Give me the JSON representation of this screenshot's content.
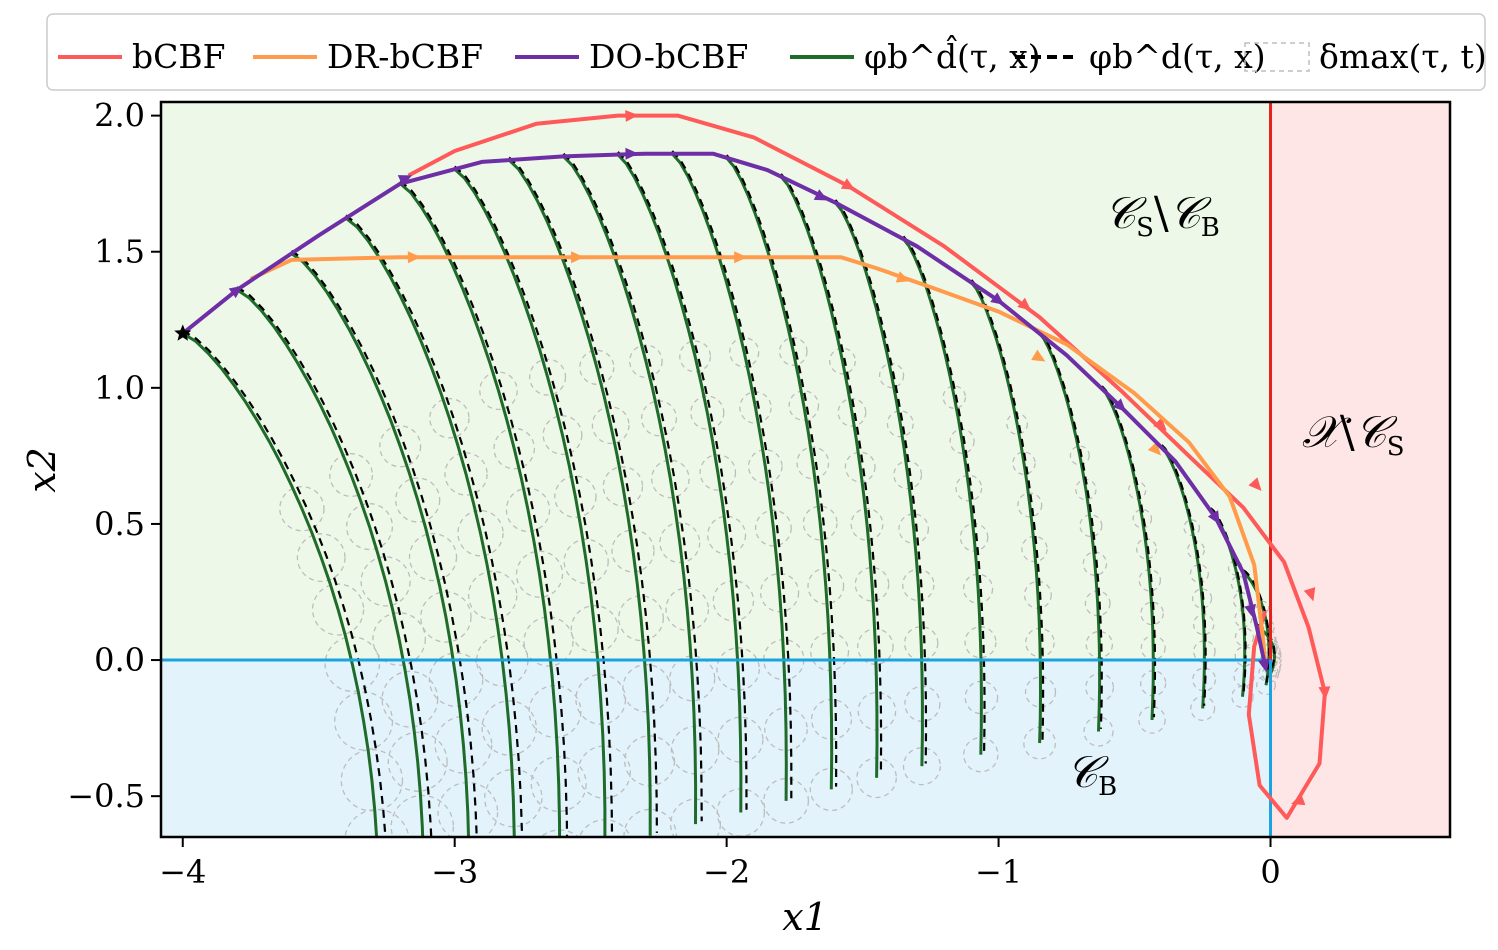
{
  "chart_data": {
    "type": "line",
    "xlabel": "x1",
    "ylabel": "x2",
    "xlim": [
      -4.08,
      0.66
    ],
    "ylim": [
      -0.65,
      2.05
    ],
    "x_ticks": [
      {
        "value": -4,
        "label": "−4"
      },
      {
        "value": -3,
        "label": "−3"
      },
      {
        "value": -2,
        "label": "−2"
      },
      {
        "value": -1,
        "label": "−1"
      },
      {
        "value": 0,
        "label": "0"
      }
    ],
    "y_ticks": [
      {
        "value": 2.0,
        "label": "2.0"
      },
      {
        "value": 1.5,
        "label": "1.5"
      },
      {
        "value": 1.0,
        "label": "1.0"
      },
      {
        "value": 0.5,
        "label": "0.5"
      },
      {
        "value": 0.0,
        "label": "0.0"
      },
      {
        "value": -0.5,
        "label": "−0.5"
      }
    ],
    "grid": false,
    "legend_placement": "top",
    "legend": [
      {
        "label": "bCBF",
        "color": "#ff5a5a",
        "style": "solid"
      },
      {
        "label": "DR-bCBF",
        "color": "#ff9b4a",
        "style": "solid"
      },
      {
        "label": "DO-bCBF",
        "color": "#6e2fa6",
        "style": "solid"
      },
      {
        "label": "φb^d̂(τ, x)",
        "color": "#1f6b2a",
        "style": "solid"
      },
      {
        "label": "φb^d(τ, x)",
        "color": "#000000",
        "style": "dashed"
      },
      {
        "label": "δmax(τ, t)",
        "color": "#bdbdbd",
        "style": "dashed-box"
      }
    ],
    "regions": [
      {
        "label": "CS\\CB",
        "color": "#eef8e8",
        "x": [
          -4.08,
          0
        ],
        "y": [
          0,
          2.05
        ]
      },
      {
        "label": "X\\CS",
        "color": "#ffe6e6",
        "x": [
          0,
          0.66
        ],
        "y": [
          -0.65,
          2.05
        ]
      },
      {
        "label": "CB",
        "color": "#e3f3fb",
        "x": [
          -4.08,
          0
        ],
        "y": [
          -0.65,
          0
        ]
      }
    ],
    "boundaries": {
      "safe_set_edge": {
        "x": 0,
        "color": "#e8201c"
      },
      "backup_set_edge": {
        "y": 0,
        "color": "#1aa3df"
      }
    },
    "start_point": {
      "x": -4.0,
      "y": 1.2
    },
    "series": [
      {
        "name": "bCBF",
        "color": "#ff5a5a",
        "points": [
          [
            -3.17,
            1.78
          ],
          [
            -3.0,
            1.87
          ],
          [
            -2.7,
            1.97
          ],
          [
            -2.4,
            2.0
          ],
          [
            -2.18,
            2.0
          ],
          [
            -1.9,
            1.92
          ],
          [
            -1.55,
            1.74
          ],
          [
            -1.2,
            1.52
          ],
          [
            -0.85,
            1.26
          ],
          [
            -0.55,
            0.99
          ],
          [
            -0.3,
            0.75
          ],
          [
            -0.1,
            0.56
          ],
          [
            0.05,
            0.36
          ],
          [
            0.14,
            0.12
          ],
          [
            0.2,
            -0.12
          ],
          [
            0.18,
            -0.38
          ],
          [
            0.06,
            -0.58
          ],
          [
            -0.04,
            -0.46
          ],
          [
            -0.08,
            -0.2
          ],
          [
            -0.06,
            0.05
          ],
          [
            -0.02,
            0.18
          ]
        ],
        "arrows_at": [
          [
            -2.35,
            2.0
          ],
          [
            -1.55,
            1.74
          ],
          [
            -0.9,
            1.3
          ],
          [
            -0.4,
            0.86
          ],
          [
            -0.05,
            0.64
          ],
          [
            0.15,
            0.24
          ],
          [
            0.2,
            -0.12
          ],
          [
            0.1,
            -0.52
          ]
        ]
      },
      {
        "name": "DR-bCBF",
        "color": "#ff9b4a",
        "points": [
          [
            -3.75,
            1.4
          ],
          [
            -3.6,
            1.47
          ],
          [
            -3.2,
            1.48
          ],
          [
            -2.5,
            1.48
          ],
          [
            -1.9,
            1.48
          ],
          [
            -1.58,
            1.48
          ],
          [
            -1.45,
            1.44
          ],
          [
            -1.25,
            1.37
          ],
          [
            -1.0,
            1.28
          ],
          [
            -0.75,
            1.16
          ],
          [
            -0.5,
            0.98
          ],
          [
            -0.3,
            0.8
          ],
          [
            -0.15,
            0.6
          ],
          [
            -0.06,
            0.35
          ],
          [
            -0.03,
            0.1
          ],
          [
            -0.02,
            0.0
          ]
        ],
        "arrows_at": [
          [
            -3.15,
            1.48
          ],
          [
            -2.55,
            1.48
          ],
          [
            -1.95,
            1.48
          ],
          [
            -1.35,
            1.4
          ],
          [
            -0.85,
            1.11
          ],
          [
            -0.42,
            0.77
          ]
        ]
      },
      {
        "name": "DO-bCBF",
        "color": "#6e2fa6",
        "points": [
          [
            -4.0,
            1.2
          ],
          [
            -3.8,
            1.36
          ],
          [
            -3.5,
            1.56
          ],
          [
            -3.2,
            1.75
          ],
          [
            -2.9,
            1.83
          ],
          [
            -2.6,
            1.85
          ],
          [
            -2.3,
            1.86
          ],
          [
            -2.05,
            1.86
          ],
          [
            -1.85,
            1.8
          ],
          [
            -1.6,
            1.68
          ],
          [
            -1.3,
            1.52
          ],
          [
            -1.0,
            1.32
          ],
          [
            -0.75,
            1.12
          ],
          [
            -0.55,
            0.93
          ],
          [
            -0.35,
            0.73
          ],
          [
            -0.2,
            0.52
          ],
          [
            -0.1,
            0.32
          ],
          [
            -0.05,
            0.12
          ],
          [
            -0.02,
            -0.02
          ]
        ],
        "arrows_at": [
          [
            -3.8,
            1.36
          ],
          [
            -3.18,
            1.77
          ],
          [
            -2.35,
            1.86
          ],
          [
            -1.65,
            1.7
          ],
          [
            -1.0,
            1.32
          ],
          [
            -0.55,
            0.93
          ],
          [
            -0.2,
            0.52
          ],
          [
            -0.07,
            0.18
          ],
          [
            -0.02,
            -0.02
          ]
        ]
      }
    ],
    "backup_trajectory_starts_x": [
      -4.0,
      -3.8,
      -3.6,
      -3.4,
      -3.2,
      -3.0,
      -2.8,
      -2.6,
      -2.4,
      -2.2,
      -2.0,
      -1.8,
      -1.6,
      -1.35,
      -1.1,
      -0.85,
      -0.62,
      -0.4,
      -0.22,
      -0.1,
      -0.05
    ],
    "backup_trajectory_note": "branches follow DO-bCBF start points and curve downward"
  }
}
